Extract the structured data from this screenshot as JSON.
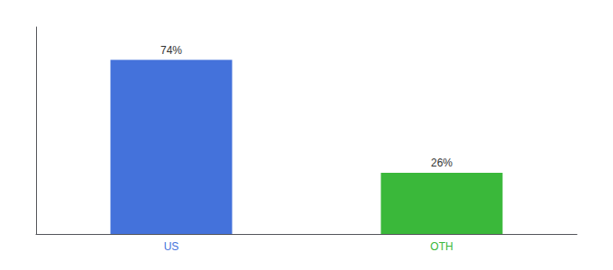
{
  "chart_data": {
    "type": "bar",
    "categories": [
      "US",
      "OTH"
    ],
    "values": [
      74,
      26
    ],
    "value_labels": [
      "74%",
      "26%"
    ],
    "colors": [
      "#4472db",
      "#3ab83a"
    ],
    "ylim": [
      0,
      88
    ],
    "grid": false,
    "data_labels": true,
    "tick_labels": "x"
  }
}
